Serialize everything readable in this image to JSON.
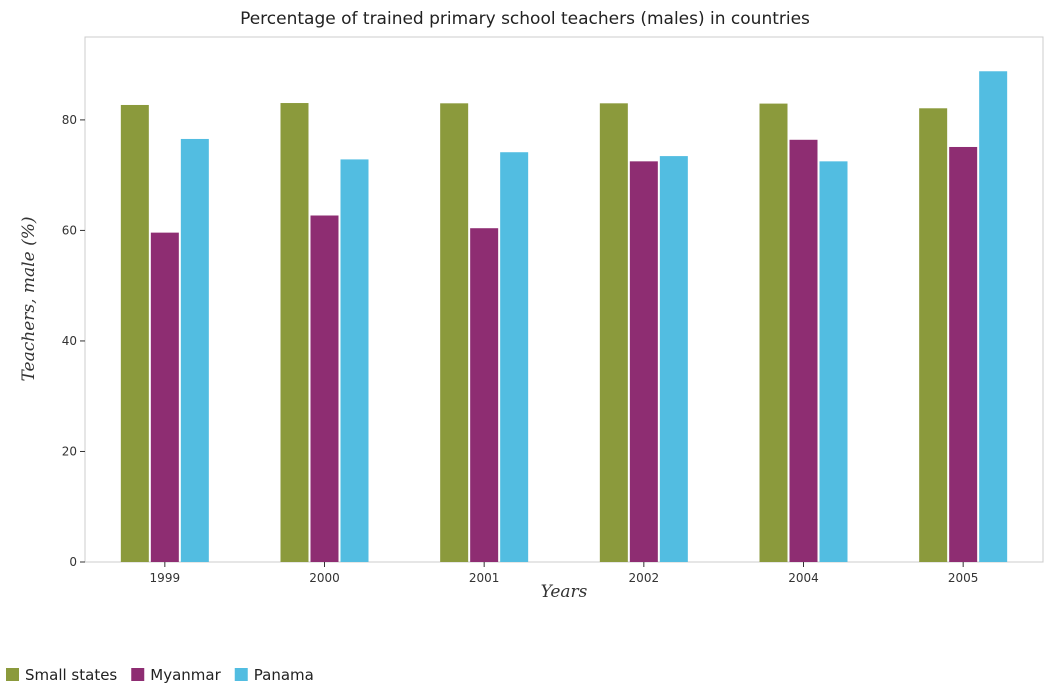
{
  "chart_data": {
    "type": "bar",
    "title": "Percentage of trained primary school teachers (males) in countries",
    "xlabel": "Years",
    "ylabel": "Teachers, male (%)",
    "categories": [
      "1999",
      "2000",
      "2001",
      "2002",
      "2004",
      "2005"
    ],
    "ylim": [
      0,
      95
    ],
    "yticks": [
      0,
      20,
      40,
      60,
      80
    ],
    "grid": false,
    "legend_position": "bottom-left",
    "series": [
      {
        "name": "Small states",
        "color": "#8b9a3c",
        "values": [
          82.7,
          83.05,
          83.0,
          83.0,
          82.95,
          82.1
        ]
      },
      {
        "name": "Myanmar",
        "color": "#8e2d72",
        "values": [
          59.6,
          62.7,
          60.4,
          72.5,
          76.4,
          75.1
        ]
      },
      {
        "name": "Panama",
        "color": "#52bde1",
        "values": [
          76.55,
          72.85,
          74.15,
          73.45,
          72.5,
          88.8
        ]
      }
    ]
  }
}
